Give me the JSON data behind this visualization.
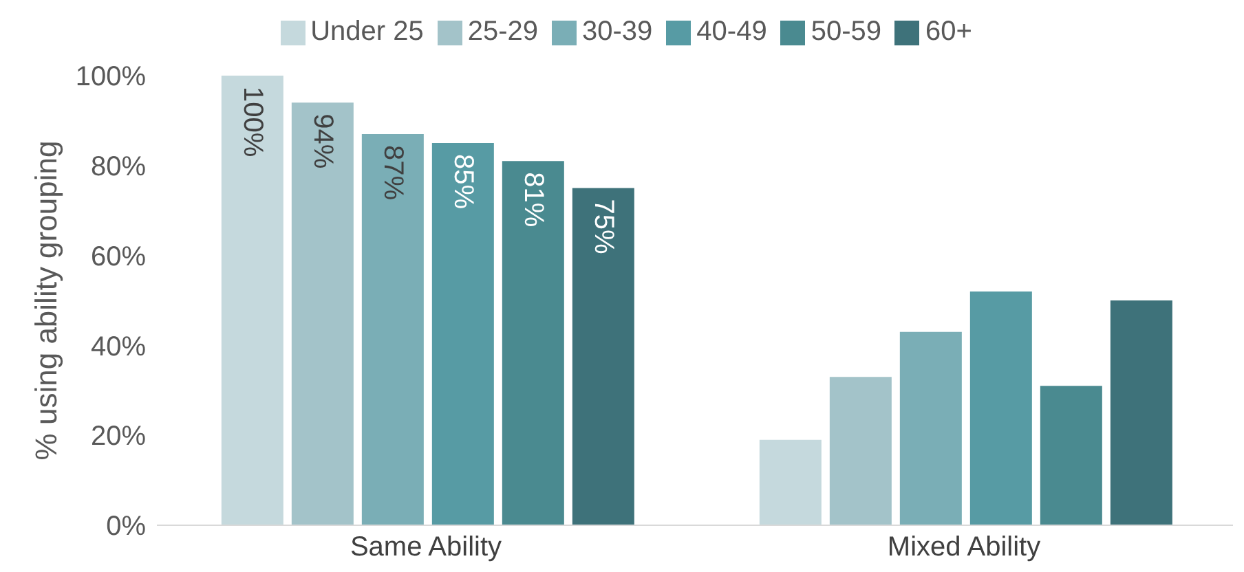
{
  "chart_data": {
    "type": "bar",
    "ylabel": "% using ability grouping",
    "categories": [
      "Same Ability",
      "Mixed Ability"
    ],
    "series": [
      {
        "name": "Under 25",
        "color": "#c5d9dd",
        "values": [
          100,
          19
        ],
        "value_labels": [
          "100%",
          null
        ]
      },
      {
        "name": "25-29",
        "color": "#a3c3c9",
        "values": [
          94,
          33
        ],
        "value_labels": [
          "94%",
          null
        ]
      },
      {
        "name": "30-39",
        "color": "#7aaeb6",
        "values": [
          87,
          43
        ],
        "value_labels": [
          "87%",
          null
        ]
      },
      {
        "name": "40-49",
        "color": "#579ba4",
        "values": [
          85,
          52
        ],
        "value_labels": [
          "85%",
          null
        ]
      },
      {
        "name": "50-59",
        "color": "#4a8a90",
        "values": [
          81,
          31
        ],
        "value_labels": [
          "81%",
          null
        ]
      },
      {
        "name": "60+",
        "color": "#3e727a",
        "values": [
          75,
          50
        ],
        "value_labels": [
          "75%",
          null
        ]
      }
    ],
    "ylim": [
      0,
      100
    ],
    "yticks": [
      {
        "value": 0,
        "label": "0%"
      },
      {
        "value": 20,
        "label": "20%"
      },
      {
        "value": 40,
        "label": "40%"
      },
      {
        "value": 60,
        "label": "60%"
      },
      {
        "value": 80,
        "label": "80%"
      },
      {
        "value": 100,
        "label": "100%"
      }
    ],
    "grid": false,
    "legend": "top"
  }
}
